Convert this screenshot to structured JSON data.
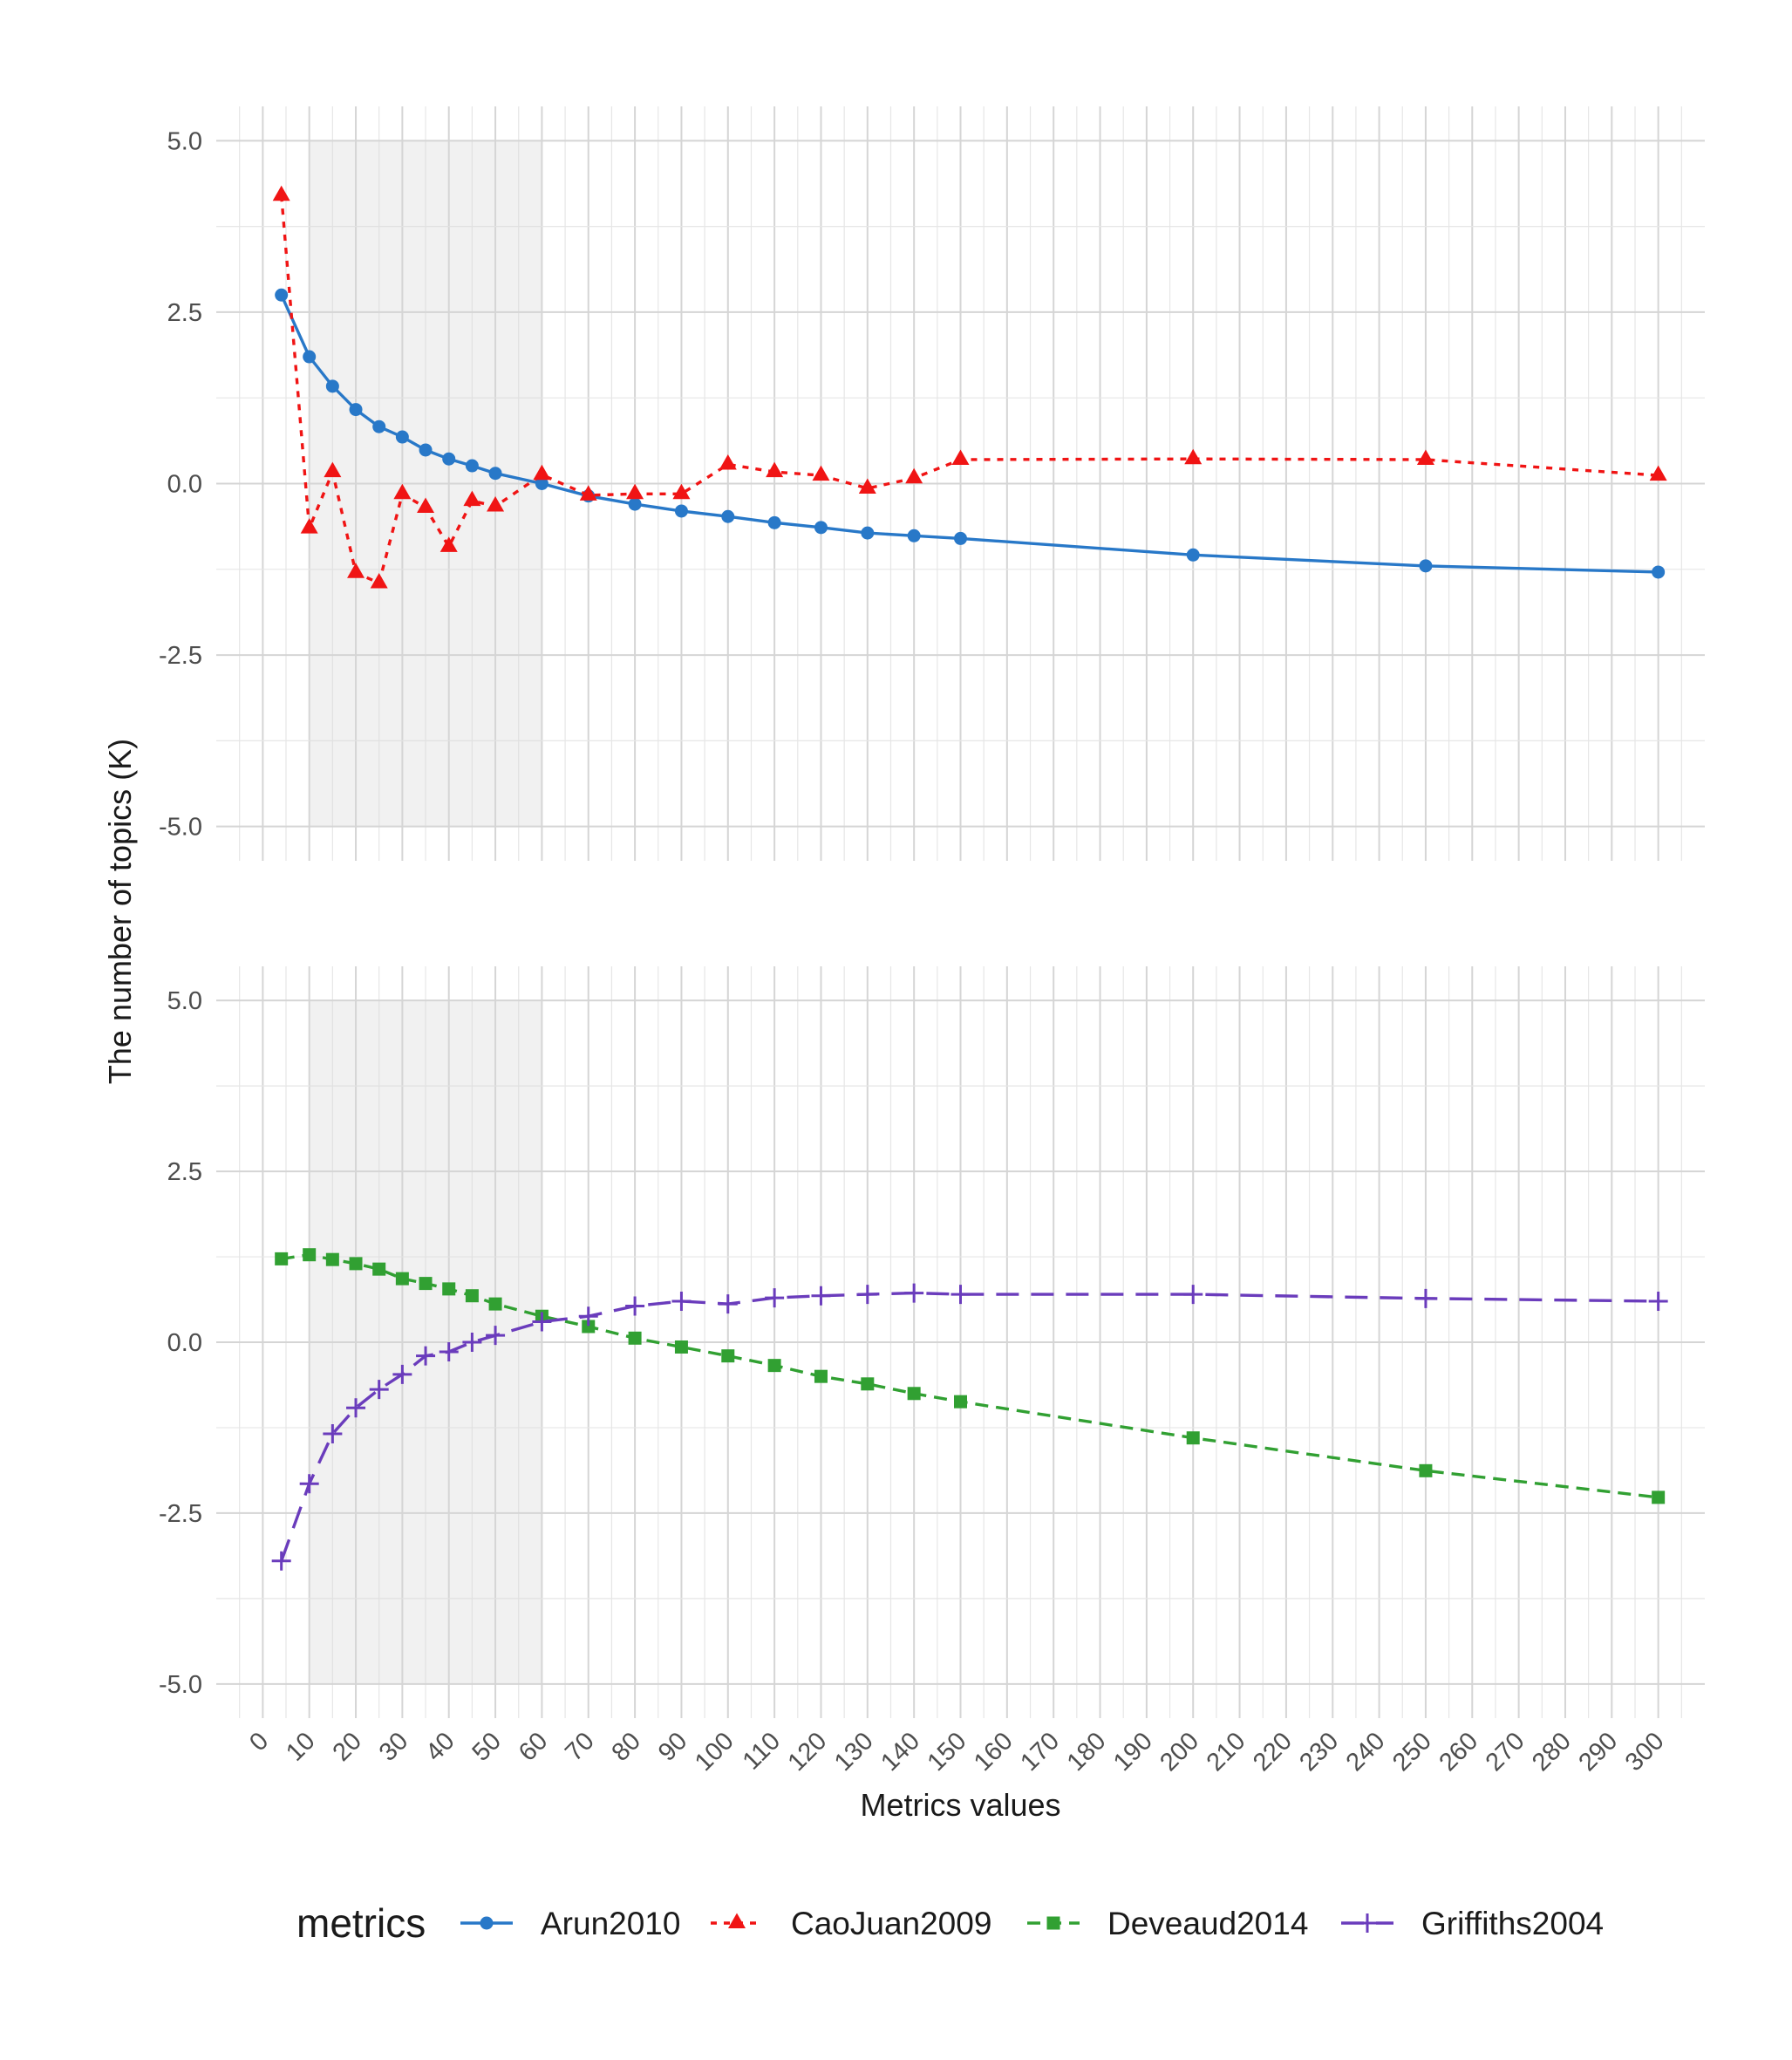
{
  "chart_data": {
    "type": "line",
    "xlabel": "Metrics values",
    "ylabel": "The number of topics (K)",
    "x_ticks": [
      0,
      10,
      20,
      30,
      40,
      50,
      60,
      70,
      80,
      90,
      100,
      110,
      120,
      130,
      140,
      150,
      160,
      170,
      180,
      190,
      200,
      210,
      220,
      230,
      240,
      250,
      260,
      270,
      280,
      290,
      300
    ],
    "y_ticks": [
      5.0,
      2.5,
      0.0,
      -2.5,
      -5.0
    ],
    "y_tick_labels": [
      "5.0",
      "2.5",
      "0.0",
      "-2.5",
      "-5.0"
    ],
    "xlim": [
      -10,
      310
    ],
    "ylim": [
      -5.5,
      5.5
    ],
    "grid": true,
    "highlight_band": [
      10,
      60
    ],
    "x": [
      4,
      10,
      15,
      20,
      25,
      30,
      35,
      40,
      45,
      50,
      60,
      70,
      80,
      90,
      100,
      110,
      120,
      130,
      140,
      150,
      200,
      250,
      300
    ],
    "panels": [
      {
        "series": [
          {
            "name": "Arun2010",
            "color": "#2878c8",
            "line_style": "solid",
            "marker": "circle",
            "values": [
              2.75,
              1.85,
              1.42,
              1.08,
              0.83,
              0.68,
              0.49,
              0.36,
              0.26,
              0.15,
              0.0,
              -0.18,
              -0.3,
              -0.4,
              -0.48,
              -0.57,
              -0.64,
              -0.72,
              -0.76,
              -0.8,
              -1.04,
              -1.2,
              -1.29
            ]
          },
          {
            "name": "CaoJuan2009",
            "color": "#f01414",
            "line_style": "dotted",
            "marker": "triangle",
            "values": [
              4.2,
              -0.65,
              0.17,
              -1.3,
              -1.45,
              -0.15,
              -0.35,
              -0.92,
              -0.25,
              -0.33,
              0.13,
              -0.17,
              -0.15,
              -0.15,
              0.28,
              0.17,
              0.12,
              -0.07,
              0.08,
              0.35,
              0.36,
              0.35,
              0.12
            ]
          }
        ]
      },
      {
        "series": [
          {
            "name": "Deveaud2014",
            "color": "#31a032",
            "line_style": "dashed",
            "marker": "square",
            "values": [
              1.22,
              1.28,
              1.21,
              1.15,
              1.07,
              0.93,
              0.86,
              0.78,
              0.68,
              0.56,
              0.38,
              0.23,
              0.06,
              -0.07,
              -0.2,
              -0.34,
              -0.5,
              -0.61,
              -0.75,
              -0.87,
              -1.4,
              -1.88,
              -2.27
            ]
          },
          {
            "name": "Griffiths2004",
            "color": "#6a3cbc",
            "line_style": "longdash",
            "marker": "plus",
            "values": [
              -3.2,
              -2.07,
              -1.34,
              -0.96,
              -0.69,
              -0.47,
              -0.2,
              -0.14,
              0.0,
              0.1,
              0.3,
              0.38,
              0.53,
              0.6,
              0.56,
              0.65,
              0.68,
              0.7,
              0.72,
              0.7,
              0.7,
              0.64,
              0.6
            ]
          }
        ]
      }
    ],
    "legend": {
      "title": "metrics",
      "position": "bottom",
      "entries": [
        "Arun2010",
        "CaoJuan2009",
        "Deveaud2014",
        "Griffiths2004"
      ]
    }
  }
}
